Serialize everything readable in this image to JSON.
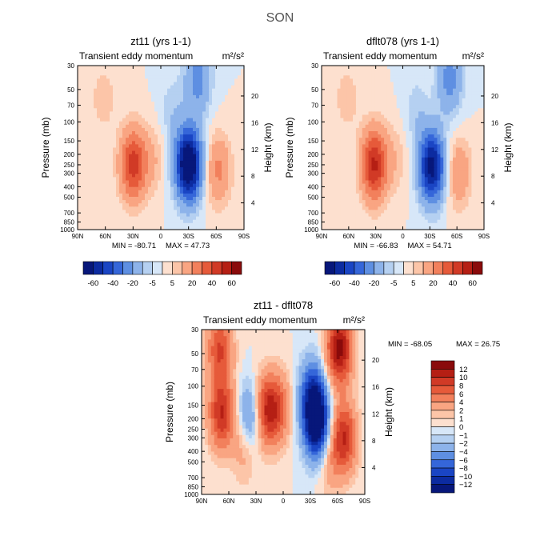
{
  "title": "SON",
  "colors": {
    "positive": [
      "#fde0cf",
      "#fcc5a8",
      "#f9a582",
      "#f2805c",
      "#e65a3a",
      "#d13a26",
      "#b51f14",
      "#8a0b0b"
    ],
    "negative": [
      "#d7e7f8",
      "#b5d0f1",
      "#8db3ea",
      "#5e8fe2",
      "#3566d9",
      "#1a45c4",
      "#0c2ba0",
      "#07177a"
    ]
  },
  "chart_data": [
    {
      "type": "heatmap",
      "id": "zt11",
      "title": "zt11 (yrs 1-1)",
      "subtitle_left": "Transient eddy momentum",
      "units": "m²/s²",
      "xlabel": "",
      "ylabel": "Pressure (mb)",
      "ylabel_right": "Height (km)",
      "x_ticks": [
        "90N",
        "60N",
        "30N",
        "0",
        "30S",
        "60S",
        "90S"
      ],
      "x_tick_values": [
        90,
        60,
        30,
        0,
        -30,
        -60,
        -90
      ],
      "y_ticks": [
        "30",
        "50",
        "70",
        "100",
        "150",
        "200",
        "250",
        "300",
        "400",
        "500",
        "700",
        "850",
        "1000"
      ],
      "y_tick_values": [
        30,
        50,
        70,
        100,
        150,
        200,
        250,
        300,
        400,
        500,
        700,
        850,
        1000
      ],
      "y_right_ticks": [
        "20",
        "16",
        "12",
        "8",
        "4"
      ],
      "y_right_values": [
        20,
        16,
        12,
        8,
        4
      ],
      "ylim": [
        1000,
        30
      ],
      "xlim": [
        90,
        -90
      ],
      "min_label": "MIN = -80.71",
      "max_label": "MAX = 47.73",
      "min": -80.71,
      "max": 47.73,
      "levels": [
        -60,
        -50,
        -40,
        -30,
        -20,
        -10,
        -5,
        0,
        5,
        10,
        20,
        30,
        40,
        50,
        60
      ],
      "colorbar_labels": [
        "-60",
        "-40",
        "-20",
        "-5",
        "5",
        "20",
        "40",
        "60"
      ],
      "features": [
        {
          "lat": 30,
          "p": 250,
          "value": 45
        },
        {
          "lat": -30,
          "p": 250,
          "value": -80
        },
        {
          "lat": -62,
          "p": 280,
          "value": 22
        },
        {
          "lat": 8,
          "p": 220,
          "value": 9
        },
        {
          "lat": -12,
          "p": 80,
          "value": -8
        },
        {
          "lat": -40,
          "p": 40,
          "value": -25
        },
        {
          "lat": 62,
          "p": 60,
          "value": 8
        }
      ]
    },
    {
      "type": "heatmap",
      "id": "dflt078",
      "title": "dflt078 (yrs 1-1)",
      "subtitle_left": "Transient eddy momentum",
      "units": "m²/s²",
      "xlabel": "",
      "ylabel": "Pressure (mb)",
      "ylabel_right": "Height (km)",
      "x_ticks": [
        "90N",
        "60N",
        "30N",
        "0",
        "30S",
        "60S",
        "90S"
      ],
      "x_tick_values": [
        90,
        60,
        30,
        0,
        -30,
        -60,
        -90
      ],
      "y_ticks": [
        "30",
        "50",
        "70",
        "100",
        "150",
        "200",
        "250",
        "300",
        "400",
        "500",
        "700",
        "850",
        "1000"
      ],
      "y_tick_values": [
        30,
        50,
        70,
        100,
        150,
        200,
        250,
        300,
        400,
        500,
        700,
        850,
        1000
      ],
      "y_right_ticks": [
        "20",
        "16",
        "12",
        "8",
        "4"
      ],
      "y_right_values": [
        20,
        16,
        12,
        8,
        4
      ],
      "ylim": [
        1000,
        30
      ],
      "xlim": [
        90,
        -90
      ],
      "min_label": "MIN = -66.83",
      "max_label": "MAX = 54.71",
      "min": -66.83,
      "max": 54.71,
      "levels": [
        -60,
        -50,
        -40,
        -30,
        -20,
        -10,
        -5,
        0,
        5,
        10,
        20,
        30,
        40,
        50,
        60
      ],
      "colorbar_labels": [
        "-60",
        "-40",
        "-20",
        "-5",
        "5",
        "20",
        "40",
        "60"
      ],
      "features": [
        {
          "lat": 32,
          "p": 250,
          "value": 52
        },
        {
          "lat": -32,
          "p": 260,
          "value": -65
        },
        {
          "lat": -62,
          "p": 300,
          "value": 18
        },
        {
          "lat": 8,
          "p": 220,
          "value": 8
        },
        {
          "lat": -15,
          "p": 80,
          "value": -8
        },
        {
          "lat": -52,
          "p": 40,
          "value": -25
        },
        {
          "lat": 62,
          "p": 60,
          "value": 8
        }
      ]
    },
    {
      "type": "heatmap",
      "id": "diff",
      "title": "zt11 - dflt078",
      "subtitle_left": "Transient eddy momentum",
      "units": "m²/s²",
      "xlabel": "",
      "ylabel": "Pressure (mb)",
      "ylabel_right": "Height (km)",
      "x_ticks": [
        "90N",
        "60N",
        "30N",
        "0",
        "30S",
        "60S",
        "90S"
      ],
      "x_tick_values": [
        90,
        60,
        30,
        0,
        -30,
        -60,
        -90
      ],
      "y_ticks": [
        "30",
        "50",
        "70",
        "100",
        "150",
        "200",
        "250",
        "300",
        "400",
        "500",
        "700",
        "850",
        "1000"
      ],
      "y_tick_values": [
        30,
        50,
        70,
        100,
        150,
        200,
        250,
        300,
        400,
        500,
        700,
        850,
        1000
      ],
      "y_right_ticks": [
        "20",
        "16",
        "12",
        "8",
        "4"
      ],
      "y_right_values": [
        20,
        16,
        12,
        8,
        4
      ],
      "ylim": [
        1000,
        30
      ],
      "xlim": [
        90,
        -90
      ],
      "min_label": "MIN = -68.05",
      "max_label": "MAX =  26.75",
      "min": -68.05,
      "max": 26.75,
      "levels": [
        -12,
        -10,
        -8,
        -6,
        -4,
        -2,
        -1,
        0,
        1,
        2,
        4,
        6,
        8,
        10,
        12
      ],
      "colorbar_labels": [
        "12",
        "10",
        "8",
        "6",
        "4",
        "2",
        "1",
        "0",
        "−1",
        "−2",
        "−4",
        "−6",
        "−8",
        "−10",
        "−12"
      ],
      "features": [
        {
          "lat": 68,
          "p": 180,
          "value": 10
        },
        {
          "lat": 70,
          "p": 45,
          "value": 8
        },
        {
          "lat": 42,
          "p": 350,
          "value": 4
        },
        {
          "lat": 35,
          "p": 200,
          "value": -8
        },
        {
          "lat": 20,
          "p": 170,
          "value": 10
        },
        {
          "lat": 5,
          "p": 160,
          "value": 6
        },
        {
          "lat": -37,
          "p": 230,
          "value": -14
        },
        {
          "lat": -32,
          "p": 120,
          "value": -9
        },
        {
          "lat": -62,
          "p": 45,
          "value": 13
        },
        {
          "lat": -67,
          "p": 300,
          "value": 10
        },
        {
          "lat": -50,
          "p": 500,
          "value": 3
        }
      ]
    }
  ]
}
